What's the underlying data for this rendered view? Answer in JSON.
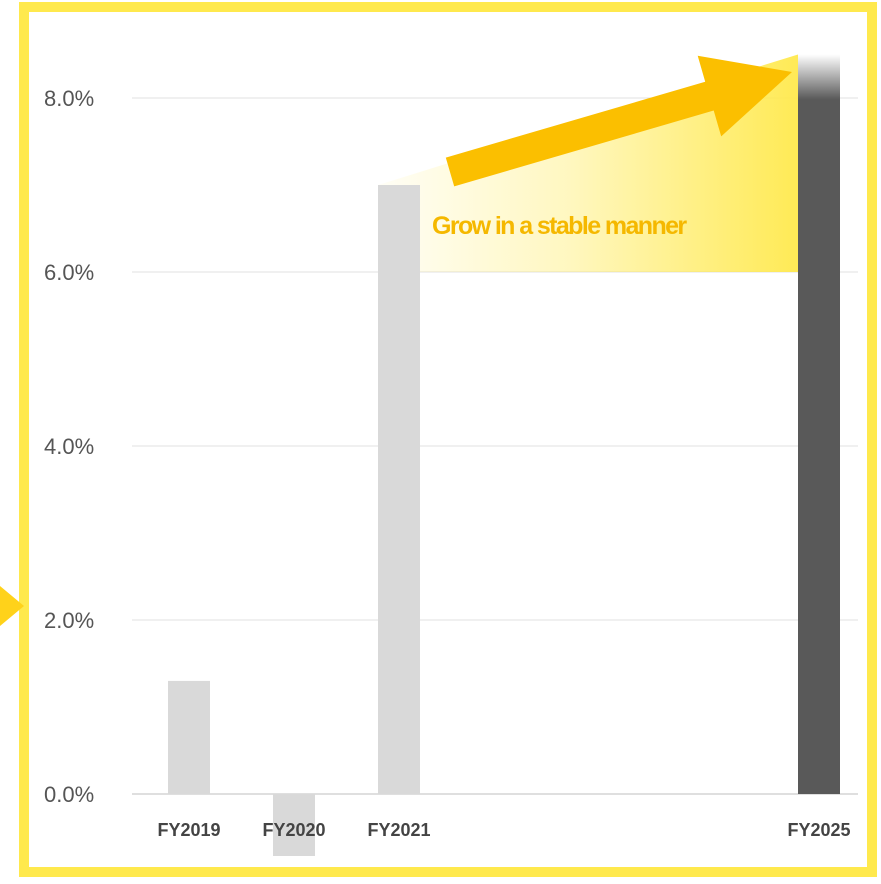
{
  "chart_data": {
    "type": "bar",
    "categories": [
      "FY2019",
      "FY2020",
      "FY2021",
      "FY2025"
    ],
    "values": [
      1.3,
      -1.0,
      7.0,
      8.5
    ],
    "ylim": [
      -1.0,
      8.5
    ],
    "yticks": [
      0.0,
      2.0,
      4.0,
      6.0,
      8.0
    ],
    "ytick_labels": [
      "0.0%",
      "2.0%",
      "4.0%",
      "6.0%",
      "8.0%"
    ],
    "grid": true,
    "annotations": [
      {
        "text": "Grow in a stable manner",
        "from_category": "FY2021",
        "to_category": "FY2025"
      }
    ],
    "colors": {
      "past_bars": "#d9d9d9",
      "target_bar": "#595959",
      "frame": "#ffe94d",
      "arrow": "#fbbf00",
      "annotation_text": "#f5b800",
      "gridline": "#e0e0e0"
    }
  }
}
